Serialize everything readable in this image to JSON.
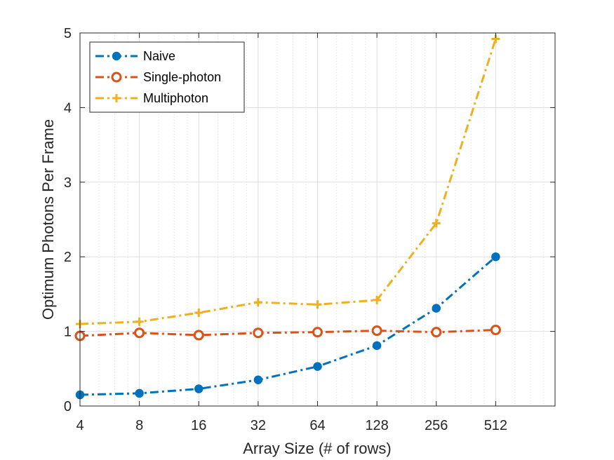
{
  "chart_data": {
    "type": "line",
    "xscale": "log2",
    "x": [
      4,
      8,
      16,
      32,
      64,
      128,
      256,
      512
    ],
    "xticks": [
      "4",
      "8",
      "16",
      "32",
      "64",
      "128",
      "256",
      "512"
    ],
    "xlim": [
      4,
      1024
    ],
    "ylim": [
      0,
      5
    ],
    "yticks": [
      "0",
      "1",
      "2",
      "3",
      "4",
      "5"
    ],
    "xlabel": "Array Size (# of rows)",
    "ylabel": "Optimum Photons Per Frame",
    "grid": true,
    "legend_position": "top-left",
    "series": [
      {
        "name": "Naive",
        "color": "#0072BD",
        "marker": "filled-circle",
        "values": [
          0.15,
          0.17,
          0.23,
          0.35,
          0.53,
          0.81,
          1.31,
          2.0
        ]
      },
      {
        "name": "Single-photon",
        "color": "#D95319",
        "marker": "open-circle",
        "values": [
          0.94,
          0.98,
          0.95,
          0.98,
          0.99,
          1.01,
          0.99,
          1.02
        ]
      },
      {
        "name": "Multiphoton",
        "color": "#EDB120",
        "marker": "plus",
        "values": [
          1.1,
          1.13,
          1.25,
          1.39,
          1.36,
          1.42,
          2.45,
          4.92
        ]
      }
    ]
  }
}
